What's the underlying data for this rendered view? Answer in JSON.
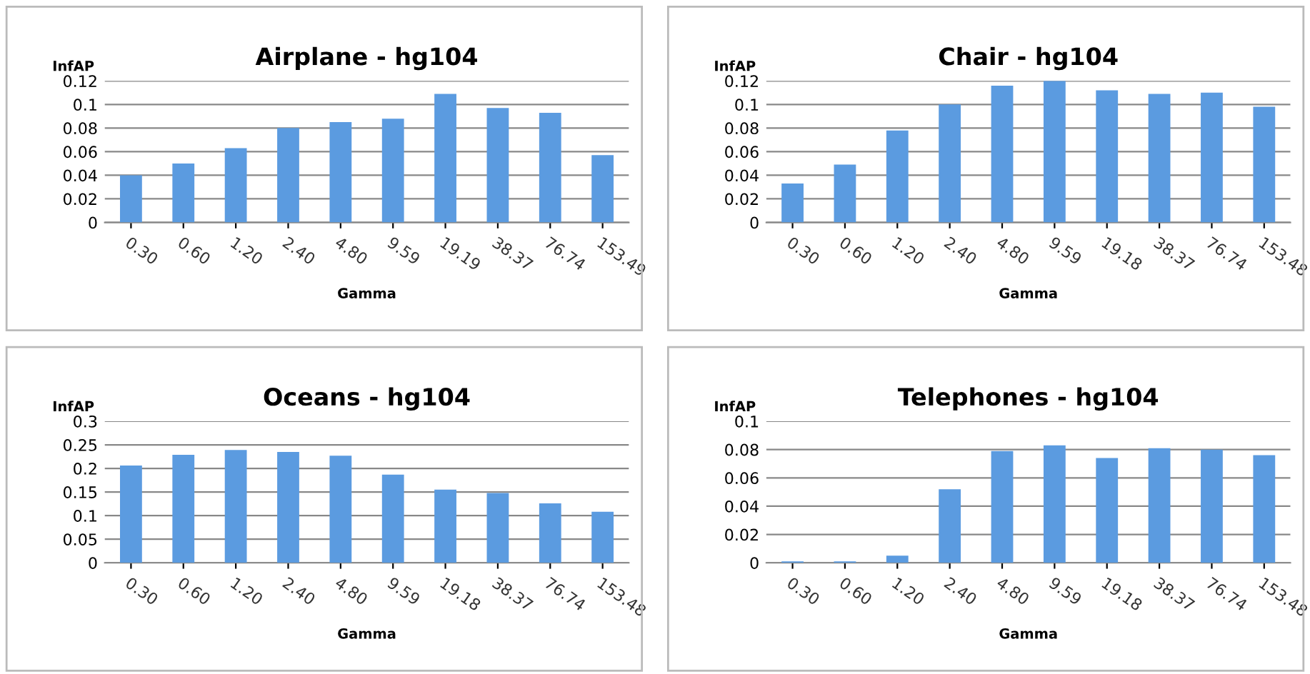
{
  "chart_data": [
    {
      "type": "bar",
      "title": "Airplane - hg104",
      "xlabel": "Gamma",
      "ylabel": "InfAP",
      "categories": [
        "0.30",
        "0.60",
        "1.20",
        "2.40",
        "4.80",
        "9.59",
        "19.19",
        "38.37",
        "76.74",
        "153.49"
      ],
      "values": [
        0.04,
        0.05,
        0.063,
        0.08,
        0.085,
        0.088,
        0.109,
        0.097,
        0.093,
        0.057
      ],
      "color": "#5b9be0",
      "ylim": [
        0,
        0.12
      ],
      "yticks": [
        {
          "value": 0,
          "label": "0"
        },
        {
          "value": 0.02,
          "label": "0.02"
        },
        {
          "value": 0.04,
          "label": "0.04"
        },
        {
          "value": 0.06,
          "label": "0.06"
        },
        {
          "value": 0.08,
          "label": "0.08"
        },
        {
          "value": 0.1,
          "label": "0.1"
        },
        {
          "value": 0.12,
          "label": "0.12"
        }
      ],
      "grid": "y"
    },
    {
      "type": "bar",
      "title": "Chair - hg104",
      "xlabel": "Gamma",
      "ylabel": "InfAP",
      "categories": [
        "0.30",
        "0.60",
        "1.20",
        "2.40",
        "4.80",
        "9.59",
        "19.18",
        "38.37",
        "76.74",
        "153.48"
      ],
      "values": [
        0.033,
        0.049,
        0.078,
        0.1,
        0.116,
        0.12,
        0.112,
        0.109,
        0.11,
        0.098
      ],
      "color": "#5b9be0",
      "ylim": [
        0,
        0.12
      ],
      "yticks": [
        {
          "value": 0,
          "label": "0"
        },
        {
          "value": 0.02,
          "label": "0.02"
        },
        {
          "value": 0.04,
          "label": "0.04"
        },
        {
          "value": 0.06,
          "label": "0.06"
        },
        {
          "value": 0.08,
          "label": "0.08"
        },
        {
          "value": 0.1,
          "label": "0.1"
        },
        {
          "value": 0.12,
          "label": "0.12"
        }
      ],
      "grid": "y"
    },
    {
      "type": "bar",
      "title": "Oceans - hg104",
      "xlabel": "Gamma",
      "ylabel": "InfAP",
      "categories": [
        "0.30",
        "0.60",
        "1.20",
        "2.40",
        "4.80",
        "9.59",
        "19.18",
        "38.37",
        "76.74",
        "153.48"
      ],
      "values": [
        0.206,
        0.229,
        0.239,
        0.235,
        0.227,
        0.187,
        0.155,
        0.148,
        0.126,
        0.108
      ],
      "color": "#5b9be0",
      "ylim": [
        0,
        0.3
      ],
      "yticks": [
        {
          "value": 0,
          "label": "0"
        },
        {
          "value": 0.05,
          "label": "0.05"
        },
        {
          "value": 0.1,
          "label": "0.1"
        },
        {
          "value": 0.15,
          "label": "0.15"
        },
        {
          "value": 0.2,
          "label": "0.2"
        },
        {
          "value": 0.25,
          "label": "0.25"
        },
        {
          "value": 0.3,
          "label": "0.3"
        }
      ],
      "grid": "y"
    },
    {
      "type": "bar",
      "title": "Telephones - hg104",
      "xlabel": "Gamma",
      "ylabel": "InfAP",
      "categories": [
        "0.30",
        "0.60",
        "1.20",
        "2.40",
        "4.80",
        "9.59",
        "19.18",
        "38.37",
        "76.74",
        "153.48"
      ],
      "values": [
        0.001,
        0.001,
        0.005,
        0.052,
        0.079,
        0.083,
        0.074,
        0.081,
        0.08,
        0.076
      ],
      "color": "#5b9be0",
      "ylim": [
        0,
        0.1
      ],
      "yticks": [
        {
          "value": 0,
          "label": "0"
        },
        {
          "value": 0.02,
          "label": "0.02"
        },
        {
          "value": 0.04,
          "label": "0.04"
        },
        {
          "value": 0.06,
          "label": "0.06"
        },
        {
          "value": 0.08,
          "label": "0.08"
        },
        {
          "value": 0.1,
          "label": "0.1"
        }
      ],
      "grid": "y"
    }
  ]
}
